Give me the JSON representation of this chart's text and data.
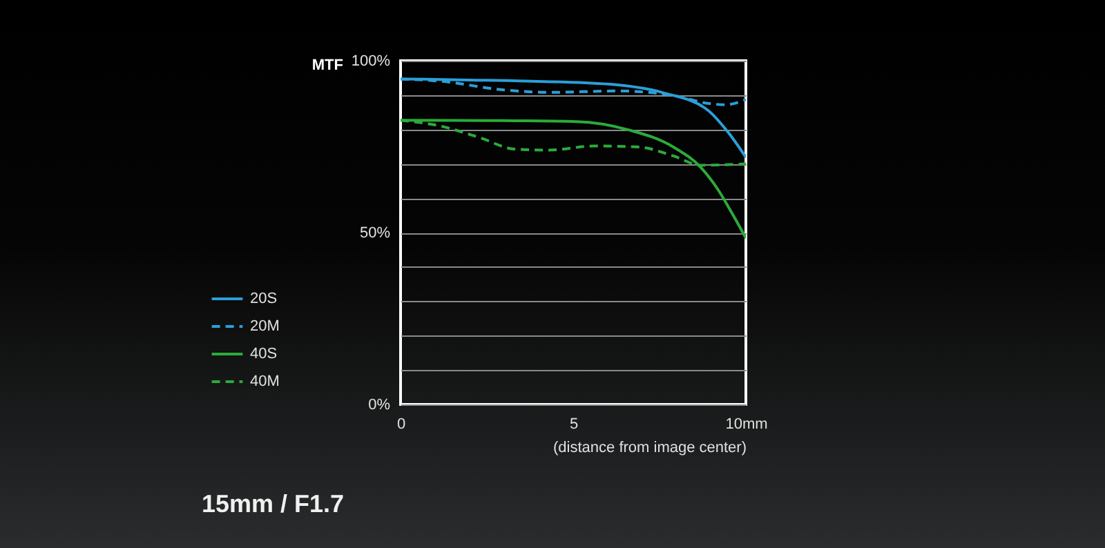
{
  "chart_data": {
    "type": "line",
    "title": "15mm / F1.7",
    "xlabel": "(distance from image center)",
    "ylabel": "MTF",
    "xlim": [
      0,
      10
    ],
    "xticks": [
      0,
      5,
      {
        "value": 10,
        "label": "10mm"
      }
    ],
    "ylim": [
      0,
      100
    ],
    "yticks": [
      {
        "value": 0,
        "label": "0%"
      },
      {
        "value": 10,
        "label": null
      },
      {
        "value": 20,
        "label": null
      },
      {
        "value": 30,
        "label": null
      },
      {
        "value": 40,
        "label": null
      },
      {
        "value": 50,
        "label": "50%"
      },
      {
        "value": 60,
        "label": null
      },
      {
        "value": 70,
        "label": null
      },
      {
        "value": 80,
        "label": null
      },
      {
        "value": 90,
        "label": null
      },
      {
        "value": 100,
        "label": "100%"
      }
    ],
    "grid": "y",
    "legend": "left",
    "series": [
      {
        "name": "20S",
        "color": "#2b9fd9",
        "line_style": "solid",
        "x": [
          0,
          2,
          4,
          6,
          7.6,
          8.9,
          9.5,
          10
        ],
        "values": [
          94.7,
          94.4,
          94,
          93.2,
          90.7,
          85.6,
          79,
          71.9
        ]
      },
      {
        "name": "20M",
        "color": "#2b9fd9",
        "line_style": "dashed",
        "x": [
          0,
          1.2,
          2.9,
          4.3,
          6.3,
          7.9,
          8.9,
          9.4,
          10
        ],
        "values": [
          94.7,
          94,
          91.6,
          90.8,
          91.2,
          89.9,
          87.6,
          87.2,
          88.7
        ]
      },
      {
        "name": "40S",
        "color": "#2bab3a",
        "line_style": "solid",
        "x": [
          0,
          2.5,
          5.1,
          6.6,
          7.9,
          8.7,
          9.2,
          9.6,
          10
        ],
        "values": [
          82.7,
          82.6,
          82.3,
          79.9,
          74.9,
          68.9,
          62.4,
          55.6,
          48.4
        ]
      },
      {
        "name": "40M",
        "color": "#2bab3a",
        "line_style": "dashed",
        "x": [
          0,
          1.2,
          2.3,
          3.3,
          4.3,
          5.6,
          6.9,
          7.9,
          8.7,
          10
        ],
        "values": [
          82.7,
          80.9,
          77.6,
          74.3,
          74,
          75.2,
          74.9,
          72.3,
          69.6,
          70
        ]
      }
    ]
  }
}
